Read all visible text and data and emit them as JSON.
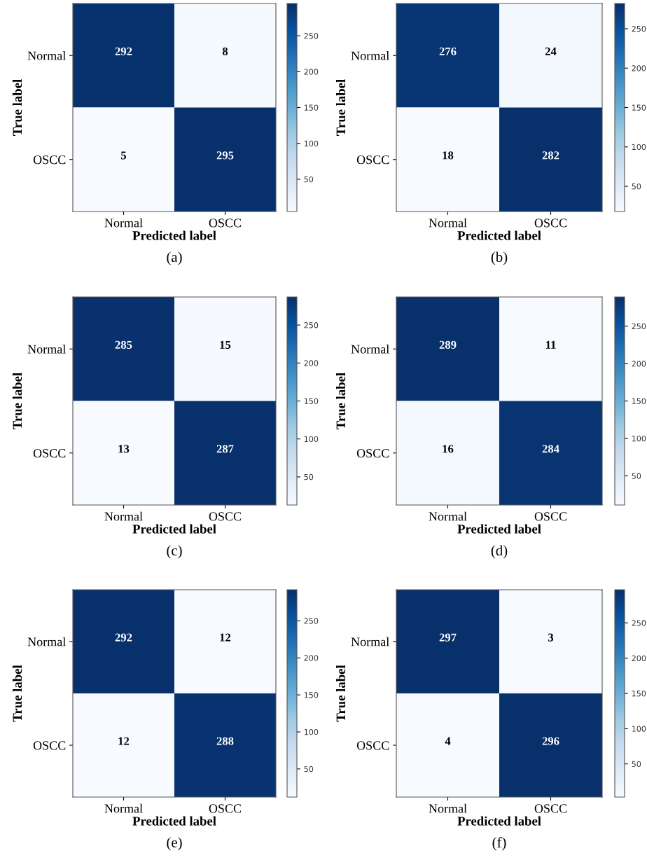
{
  "chart_data": [
    {
      "type": "heatmap",
      "title": "(a)",
      "xlabel": "Predicted label",
      "ylabel": "True label",
      "categories": [
        "Normal",
        "OSCC"
      ],
      "y_categories": [
        "Normal",
        "OSCC"
      ],
      "cells": [
        [
          292,
          8
        ],
        [
          5,
          295
        ]
      ],
      "clim": [
        5,
        295
      ],
      "cticks": [
        50,
        100,
        150,
        200,
        250
      ],
      "data_labels": true
    },
    {
      "type": "heatmap",
      "title": "(b)",
      "xlabel": "Predicted label",
      "ylabel": "True label",
      "categories": [
        "Normal",
        "OSCC"
      ],
      "y_categories": [
        "Normal",
        "OSCC"
      ],
      "cells": [
        [
          276,
          24
        ],
        [
          18,
          282
        ]
      ],
      "clim": [
        18,
        282
      ],
      "cticks": [
        50,
        100,
        150,
        200,
        250
      ],
      "data_labels": true
    },
    {
      "type": "heatmap",
      "title": "(c)",
      "xlabel": "Predicted label",
      "ylabel": "True label",
      "categories": [
        "Normal",
        "OSCC"
      ],
      "y_categories": [
        "Normal",
        "OSCC"
      ],
      "cells": [
        [
          285,
          15
        ],
        [
          13,
          287
        ]
      ],
      "clim": [
        13,
        287
      ],
      "cticks": [
        50,
        100,
        150,
        200,
        250
      ],
      "data_labels": true
    },
    {
      "type": "heatmap",
      "title": "(d)",
      "xlabel": "Predicted label",
      "ylabel": "True label",
      "categories": [
        "Normal",
        "OSCC"
      ],
      "y_categories": [
        "Normal",
        "OSCC"
      ],
      "cells": [
        [
          289,
          11
        ],
        [
          16,
          284
        ]
      ],
      "clim": [
        11,
        289
      ],
      "cticks": [
        50,
        100,
        150,
        200,
        250
      ],
      "data_labels": true
    },
    {
      "type": "heatmap",
      "title": "(e)",
      "xlabel": "Predicted label",
      "ylabel": "True label",
      "categories": [
        "Normal",
        "OSCC"
      ],
      "y_categories": [
        "Normal",
        "OSCC"
      ],
      "cells": [
        [
          292,
          12
        ],
        [
          12,
          288
        ]
      ],
      "clim": [
        12,
        292
      ],
      "cticks": [
        50,
        100,
        150,
        200,
        250
      ],
      "data_labels": true
    },
    {
      "type": "heatmap",
      "title": "(f)",
      "xlabel": "Predicted label",
      "ylabel": "True label",
      "categories": [
        "Normal",
        "OSCC"
      ],
      "y_categories": [
        "Normal",
        "OSCC"
      ],
      "cells": [
        [
          297,
          3
        ],
        [
          4,
          296
        ]
      ],
      "clim": [
        3,
        297
      ],
      "cticks": [
        50,
        100,
        150,
        200,
        250
      ],
      "data_labels": true
    }
  ]
}
